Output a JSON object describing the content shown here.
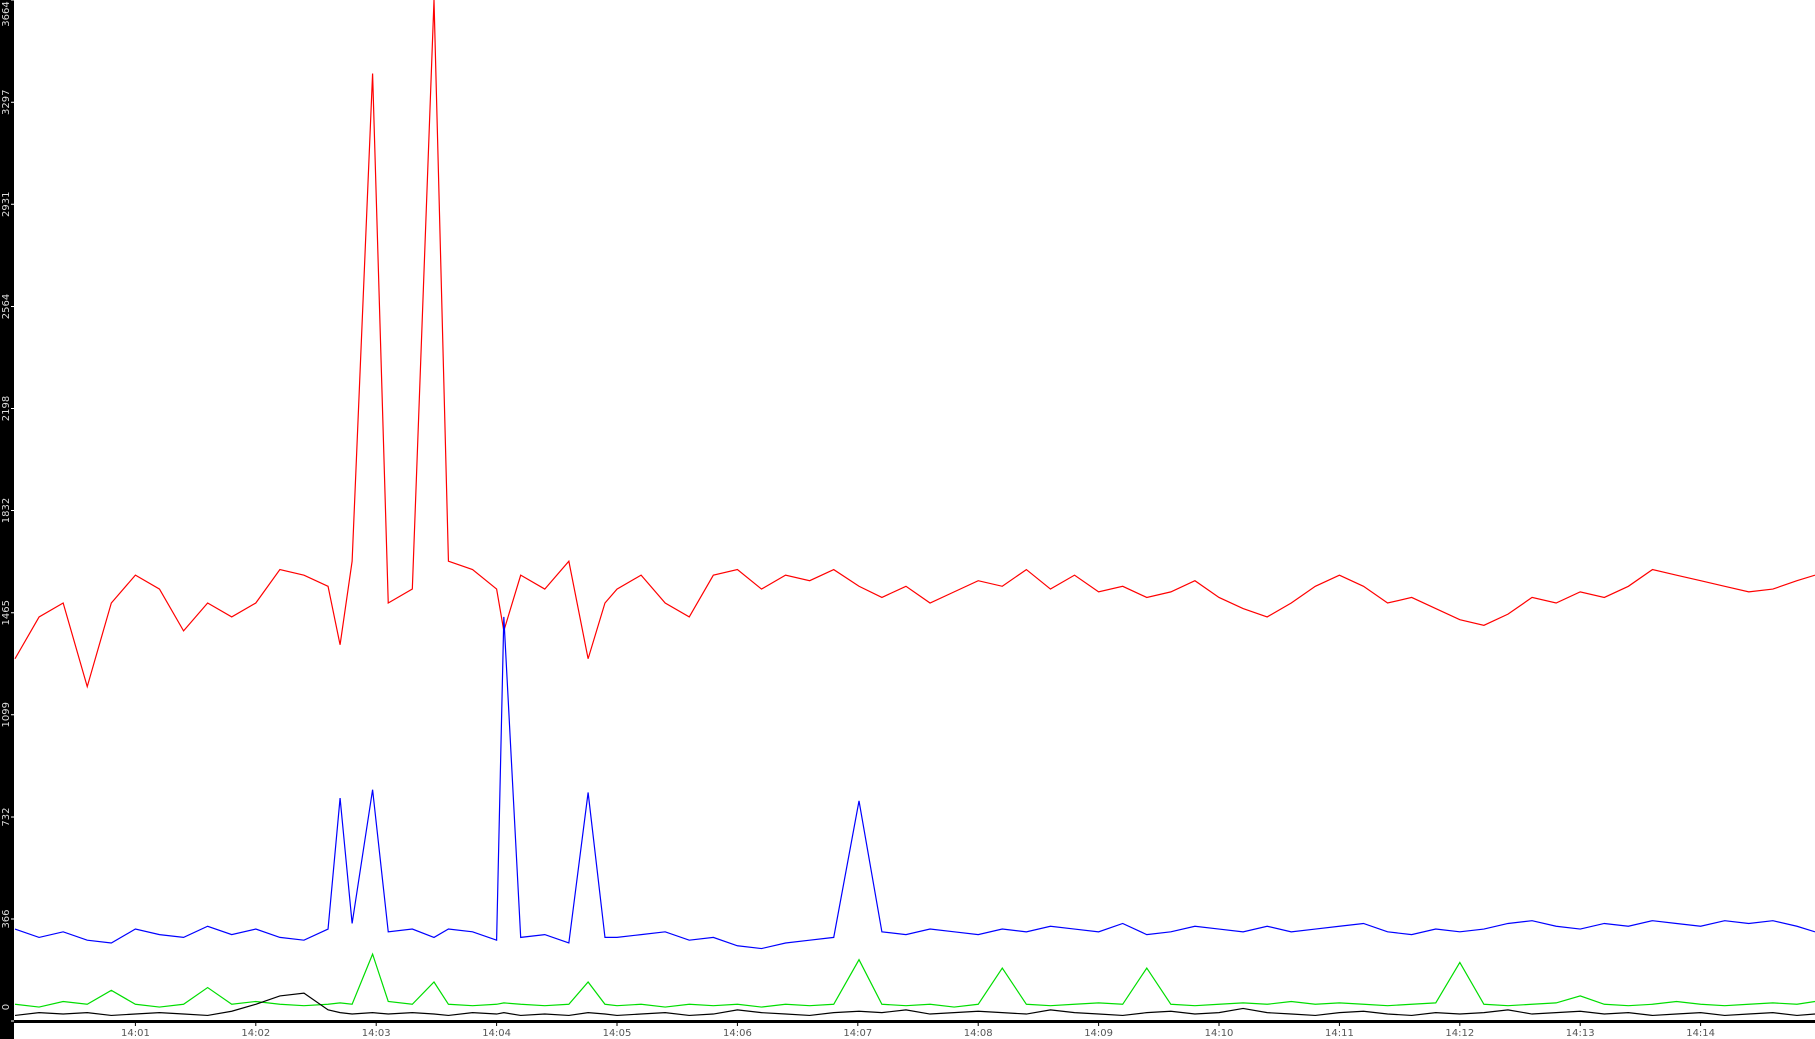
{
  "chart_data": {
    "type": "line",
    "x": [
      0,
      0.2,
      0.4,
      0.6,
      0.8,
      1.0,
      1.2,
      1.4,
      1.6,
      1.8,
      2.0,
      2.2,
      2.4,
      2.6,
      2.7,
      2.8,
      2.97,
      3.1,
      3.3,
      3.48,
      3.6,
      3.8,
      4.0,
      4.06,
      4.2,
      4.4,
      4.6,
      4.76,
      4.9,
      5.0,
      5.2,
      5.4,
      5.6,
      5.8,
      6.0,
      6.2,
      6.4,
      6.6,
      6.8,
      7.01,
      7.2,
      7.4,
      7.6,
      7.8,
      8.0,
      8.2,
      8.4,
      8.6,
      8.8,
      9.0,
      9.2,
      9.4,
      9.6,
      9.8,
      10.0,
      10.2,
      10.4,
      10.6,
      10.8,
      11.0,
      11.2,
      11.4,
      11.6,
      11.8,
      12.0,
      12.2,
      12.4,
      12.6,
      12.8,
      13.0,
      13.2,
      13.4,
      13.6,
      13.8,
      14.0,
      14.2,
      14.4,
      14.6,
      14.8,
      14.95
    ],
    "series": [
      {
        "color": "#ff0000",
        "values": [
          1300,
          1450,
          1500,
          1200,
          1500,
          1600,
          1550,
          1400,
          1500,
          1450,
          1500,
          1620,
          1600,
          1560,
          1350,
          1650,
          3400,
          1500,
          1550,
          3664,
          1650,
          1620,
          1550,
          1400,
          1600,
          1550,
          1650,
          1300,
          1500,
          1550,
          1600,
          1500,
          1450,
          1600,
          1620,
          1550,
          1600,
          1580,
          1620,
          1560,
          1520,
          1560,
          1500,
          1540,
          1580,
          1560,
          1620,
          1550,
          1600,
          1540,
          1560,
          1520,
          1540,
          1580,
          1520,
          1480,
          1450,
          1500,
          1560,
          1600,
          1560,
          1500,
          1520,
          1480,
          1440,
          1420,
          1460,
          1520,
          1500,
          1540,
          1520,
          1560,
          1620,
          1600,
          1580,
          1560,
          1540,
          1550,
          1580,
          1600
        ]
      },
      {
        "color": "#0000ff",
        "values": [
          330,
          300,
          320,
          290,
          280,
          330,
          310,
          300,
          340,
          310,
          330,
          300,
          290,
          330,
          800,
          350,
          830,
          320,
          330,
          300,
          330,
          320,
          290,
          1450,
          300,
          310,
          280,
          820,
          300,
          300,
          310,
          320,
          290,
          300,
          270,
          260,
          280,
          290,
          300,
          790,
          320,
          310,
          330,
          320,
          310,
          330,
          320,
          340,
          330,
          320,
          350,
          310,
          320,
          340,
          330,
          320,
          340,
          320,
          330,
          340,
          350,
          320,
          310,
          330,
          320,
          330,
          350,
          360,
          340,
          330,
          350,
          340,
          360,
          350,
          340,
          360,
          350,
          360,
          340,
          320
        ]
      },
      {
        "color": "#00dd00",
        "values": [
          60,
          50,
          70,
          60,
          110,
          60,
          50,
          60,
          120,
          60,
          70,
          60,
          55,
          60,
          65,
          60,
          240,
          70,
          60,
          140,
          60,
          55,
          60,
          65,
          60,
          55,
          60,
          140,
          60,
          55,
          60,
          50,
          60,
          55,
          60,
          50,
          60,
          55,
          60,
          220,
          60,
          55,
          60,
          50,
          60,
          190,
          60,
          55,
          60,
          65,
          60,
          190,
          60,
          55,
          60,
          65,
          60,
          70,
          60,
          65,
          60,
          55,
          60,
          65,
          210,
          60,
          55,
          60,
          65,
          90,
          60,
          55,
          60,
          70,
          60,
          55,
          60,
          65,
          60,
          70
        ]
      },
      {
        "color": "#000000",
        "values": [
          20,
          30,
          25,
          30,
          20,
          25,
          30,
          25,
          20,
          35,
          60,
          90,
          100,
          40,
          30,
          25,
          30,
          25,
          30,
          25,
          20,
          30,
          25,
          30,
          20,
          25,
          20,
          30,
          25,
          20,
          25,
          30,
          20,
          25,
          40,
          30,
          25,
          20,
          30,
          35,
          30,
          40,
          25,
          30,
          35,
          30,
          25,
          40,
          30,
          25,
          20,
          30,
          35,
          25,
          30,
          45,
          30,
          25,
          20,
          30,
          35,
          25,
          20,
          30,
          25,
          30,
          40,
          25,
          30,
          35,
          25,
          30,
          20,
          25,
          30,
          20,
          25,
          30,
          20,
          25
        ]
      }
    ],
    "xlim": [
      0,
      14.95
    ],
    "xticks": [
      {
        "value": 1,
        "label": "14:01"
      },
      {
        "value": 2,
        "label": "14:02"
      },
      {
        "value": 3,
        "label": "14:03"
      },
      {
        "value": 4,
        "label": "14:04"
      },
      {
        "value": 5,
        "label": "14:05"
      },
      {
        "value": 6,
        "label": "14:06"
      },
      {
        "value": 7,
        "label": "14:07"
      },
      {
        "value": 8,
        "label": "14:08"
      },
      {
        "value": 9,
        "label": "14:09"
      },
      {
        "value": 10,
        "label": "14:10"
      },
      {
        "value": 11,
        "label": "14:11"
      },
      {
        "value": 12,
        "label": "14:12"
      },
      {
        "value": 13,
        "label": "14:13"
      },
      {
        "value": 14,
        "label": "14:14"
      }
    ],
    "ylim": [
      0,
      3664
    ],
    "yticks": [
      0,
      366,
      732,
      1099,
      1465,
      1832,
      2198,
      2564,
      2931,
      3297,
      3664
    ]
  }
}
